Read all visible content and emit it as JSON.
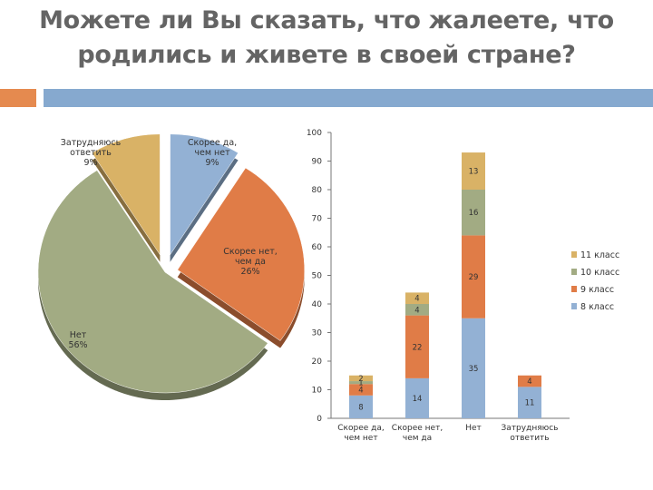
{
  "slide": {
    "title_line1": "Можете ли Вы сказать, что жалеете, что",
    "title_line2": "родились и живете в своей стране?",
    "accent_color": "#e58a4f",
    "bar_color": "#86a9cf"
  },
  "chart_data": [
    {
      "type": "pie",
      "exploded": true,
      "slices": [
        {
          "label_line1": "Скорее да,",
          "label_line2": "чем нет",
          "label_line3": "9%",
          "value": 9,
          "color": "#93b1d4"
        },
        {
          "label_line1": "Скорее нет,",
          "label_line2": "чем да",
          "label_line3": "26%",
          "value": 26,
          "color": "#e07c47"
        },
        {
          "label_line1": "Нет",
          "label_line2": "56%",
          "label_line3": "",
          "value": 56,
          "color": "#a2ab83"
        },
        {
          "label_line1": "Затрудняюсь",
          "label_line2": "ответить",
          "label_line3": "9%",
          "value": 9,
          "color": "#d9b266"
        }
      ]
    },
    {
      "type": "bar",
      "stacked": true,
      "categories": [
        {
          "line1": "Скорее да,",
          "line2": "чем нет"
        },
        {
          "line1": "Скорее нет,",
          "line2": "чем да"
        },
        {
          "line1": "Нет",
          "line2": ""
        },
        {
          "line1": "Затрудняюсь",
          "line2": "ответить"
        }
      ],
      "ylim": [
        0,
        100
      ],
      "yticks": [
        "0",
        "10",
        "20",
        "30",
        "40",
        "50",
        "60",
        "70",
        "80",
        "90",
        "100"
      ],
      "legend_position": "right",
      "series": [
        {
          "name": "8 класс",
          "color": "#93b1d4",
          "values": [
            8,
            14,
            35,
            11
          ],
          "labels": [
            "8",
            "14",
            "35",
            "11"
          ]
        },
        {
          "name": "9 класс",
          "color": "#e07c47",
          "values": [
            4,
            22,
            29,
            4
          ],
          "labels": [
            "4",
            "22",
            "29",
            "4"
          ]
        },
        {
          "name": "10 класс",
          "color": "#a2ab83",
          "values": [
            1,
            4,
            16,
            0
          ],
          "labels": [
            "1",
            "4",
            "16",
            ""
          ]
        },
        {
          "name": "11 класс",
          "color": "#d9b266",
          "values": [
            2,
            4,
            13,
            0
          ],
          "labels": [
            "2",
            "4",
            "13",
            ""
          ]
        }
      ]
    }
  ]
}
